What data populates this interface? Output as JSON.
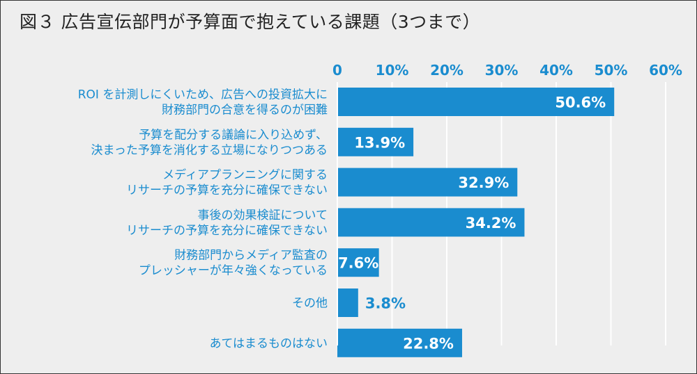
{
  "title": "図３ 広告宣伝部門が予算面で抱えている課題（3つまで）",
  "colors": {
    "bar": "#1a8ccf",
    "axis_text": "#1a8ccf",
    "grid": "#ffffff",
    "background": "#eeeeee",
    "label_inside": "#ffffff",
    "label_outside": "#1a8ccf"
  },
  "chart_data": {
    "type": "bar",
    "orientation": "horizontal",
    "title": "図３ 広告宣伝部門が予算面で抱えている課題（3つまで）",
    "xlabel": "",
    "ylabel": "",
    "xlim": [
      0,
      60
    ],
    "tick_labels": [
      "0",
      "10%",
      "20%",
      "30%",
      "40%",
      "50%",
      "60%"
    ],
    "tick_values": [
      0,
      10,
      20,
      30,
      40,
      50,
      60
    ],
    "grid": true,
    "categories": [
      [
        "ROI を計測しにくいため、広告への投資拡大に",
        "財務部門の合意を得るのが困難"
      ],
      [
        "予算を配分する議論に入り込めず、",
        "決まった予算を消化する立場になりつつある"
      ],
      [
        "メディアプランニングに関する",
        "リサーチの予算を充分に確保できない"
      ],
      [
        "事後の効果検証について",
        "リサーチの予算を充分に確保できない"
      ],
      [
        "財務部門からメディア監査の",
        "プレッシャーが年々強くなっている"
      ],
      [
        "その他"
      ],
      [
        "あてはまるものはない"
      ]
    ],
    "values": [
      50.6,
      13.9,
      32.9,
      34.2,
      7.6,
      3.8,
      22.8
    ],
    "value_labels": [
      "50.6%",
      "13.9%",
      "32.9%",
      "34.2%",
      "7.6%",
      "3.8%",
      "22.8%"
    ]
  }
}
